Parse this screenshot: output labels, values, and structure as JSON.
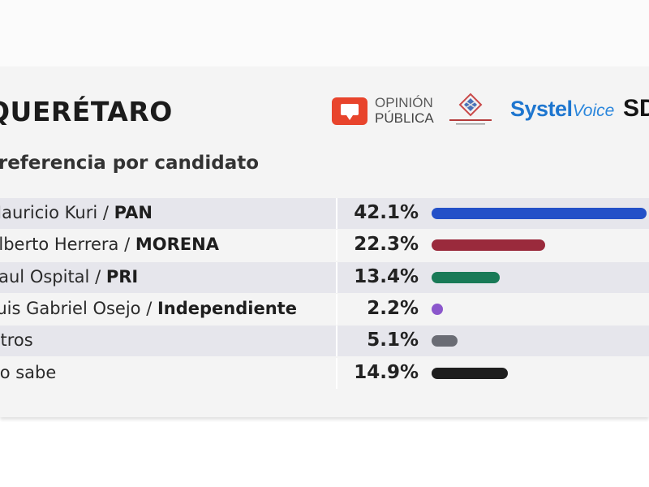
{
  "header": {
    "state": "QUERÉTARO",
    "subtitle": "Preferencia por candidato"
  },
  "logos": {
    "opinion_line1": "OPINIÓN",
    "opinion_line2": "PÚBLICA",
    "systel_a": "Systel",
    "systel_b": "Voice",
    "sd": "SD"
  },
  "chart_data": {
    "type": "bar",
    "orientation": "horizontal",
    "title": "QUERÉTARO",
    "subtitle": "Preferencia por candidato",
    "categories": [
      {
        "name": "Mauricio Kuri",
        "party": "PAN"
      },
      {
        "name": "Alberto Herrera",
        "party": "MORENA"
      },
      {
        "name": "Raul Ospital",
        "party": "PRI"
      },
      {
        "name": "Luis Gabriel Osejo",
        "party": "Independiente"
      },
      {
        "name": "Otros",
        "party": ""
      },
      {
        "name": "No sabe",
        "party": ""
      }
    ],
    "values": [
      42.1,
      22.3,
      13.4,
      2.2,
      5.1,
      14.9
    ],
    "labels": [
      "42.1%",
      "22.3%",
      "13.4%",
      "2.2%",
      "5.1%",
      "14.9%"
    ],
    "colors": [
      "#2350c8",
      "#9a2a3c",
      "#197a57",
      "#8b57cc",
      "#6a6c74",
      "#1e1e1e"
    ],
    "shaded_rows": [
      true,
      false,
      true,
      false,
      true,
      false
    ]
  }
}
